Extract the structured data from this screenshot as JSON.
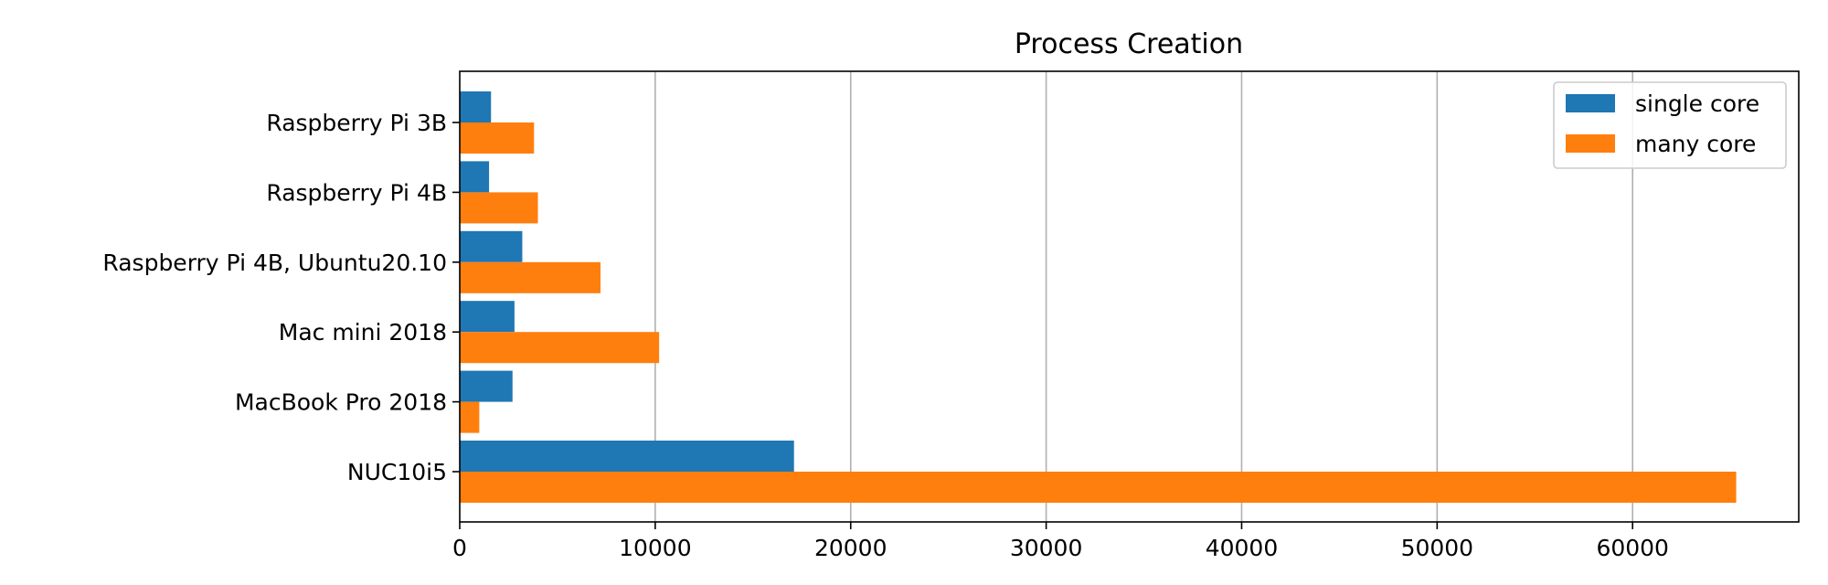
{
  "chart_data": {
    "type": "bar",
    "orientation": "horizontal",
    "title": "Process Creation",
    "xlabel": "",
    "ylabel": "",
    "categories": [
      "Raspberry Pi 3B",
      "Raspberry Pi 4B",
      "Raspberry Pi 4B,  Ubuntu20.10",
      "Mac mini 2018",
      "MacBook Pro 2018",
      "NUC10i5"
    ],
    "series": [
      {
        "name": "single core",
        "color": "#1f77b4",
        "values": [
          1600,
          1500,
          3200,
          2800,
          2700,
          17100
        ]
      },
      {
        "name": "many core",
        "color": "#ff7f0e",
        "values": [
          3800,
          4000,
          7200,
          10200,
          1000,
          65300
        ]
      }
    ],
    "xlim": [
      0,
      68500
    ],
    "xticks": [
      0,
      10000,
      20000,
      30000,
      40000,
      50000,
      60000
    ],
    "grid": "x",
    "legend_position": "top-right"
  }
}
